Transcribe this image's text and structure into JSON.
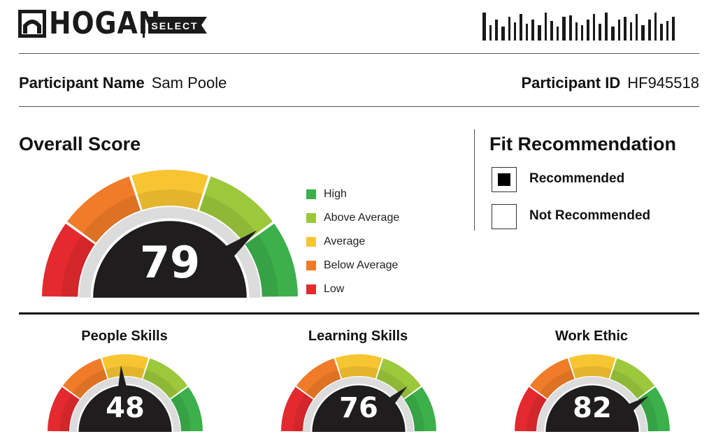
{
  "header": {
    "logo_text": "HOGAN",
    "badge_text": "SELECT"
  },
  "participant": {
    "name_label": "Participant Name",
    "name_value": "Sam Poole",
    "id_label": "Participant ID",
    "id_value": "HF945518"
  },
  "overall": {
    "title": "Overall Score",
    "score": "79",
    "score_value": 79
  },
  "legend": {
    "items": [
      {
        "label": "High",
        "color": "#3cb04a"
      },
      {
        "label": "Above Average",
        "color": "#9cc83c"
      },
      {
        "label": "Average",
        "color": "#f7c531"
      },
      {
        "label": "Below Average",
        "color": "#f07b28"
      },
      {
        "label": "Low",
        "color": "#e42a2e"
      }
    ]
  },
  "fit": {
    "title": "Fit Recommendation",
    "options": [
      {
        "label": "Recommended",
        "checked": true
      },
      {
        "label": "Not Recommended",
        "checked": false
      }
    ]
  },
  "skills": [
    {
      "title": "People Skills",
      "score": "48",
      "score_value": 48
    },
    {
      "title": "Learning Skills",
      "score": "76",
      "score_value": 76
    },
    {
      "title": "Work Ethic",
      "score": "82",
      "score_value": 82
    }
  ],
  "colors": {
    "low": "#e42a2e",
    "below_average": "#f07b28",
    "average": "#f7c531",
    "above_average": "#9cc83c",
    "high": "#3cb04a",
    "dial": "#1f1d1e",
    "track": "#dcdcdc"
  }
}
